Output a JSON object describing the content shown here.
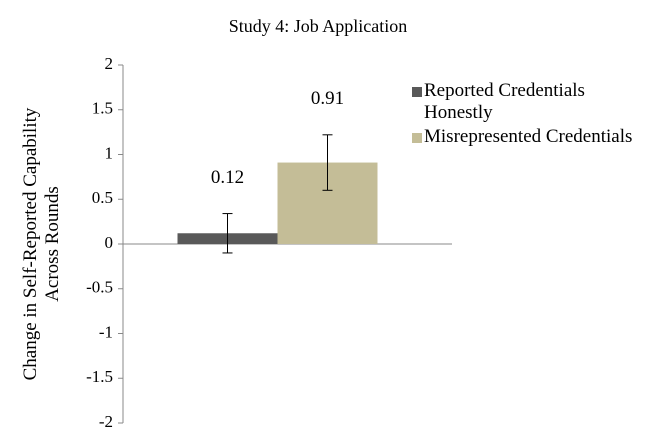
{
  "chart_data": {
    "type": "bar",
    "title": "Study 4: Job Application",
    "ylabel": "Change in Self-Reported Capability Across Rounds",
    "categories": [
      null
    ],
    "series": [
      {
        "name": "Reported Credentials Honestly",
        "color": "#595959",
        "values": [
          0.12
        ],
        "errors": [
          0.22
        ]
      },
      {
        "name": "Misrepresented Credentials",
        "color": "#c4bd97",
        "values": [
          0.91
        ],
        "errors": [
          0.31
        ]
      }
    ],
    "ylim": [
      -2,
      2
    ],
    "yticks": [
      -2,
      -1.5,
      -1,
      -0.5,
      0,
      0.5,
      1,
      1.5,
      2
    ],
    "legend": "right",
    "grid": false
  }
}
